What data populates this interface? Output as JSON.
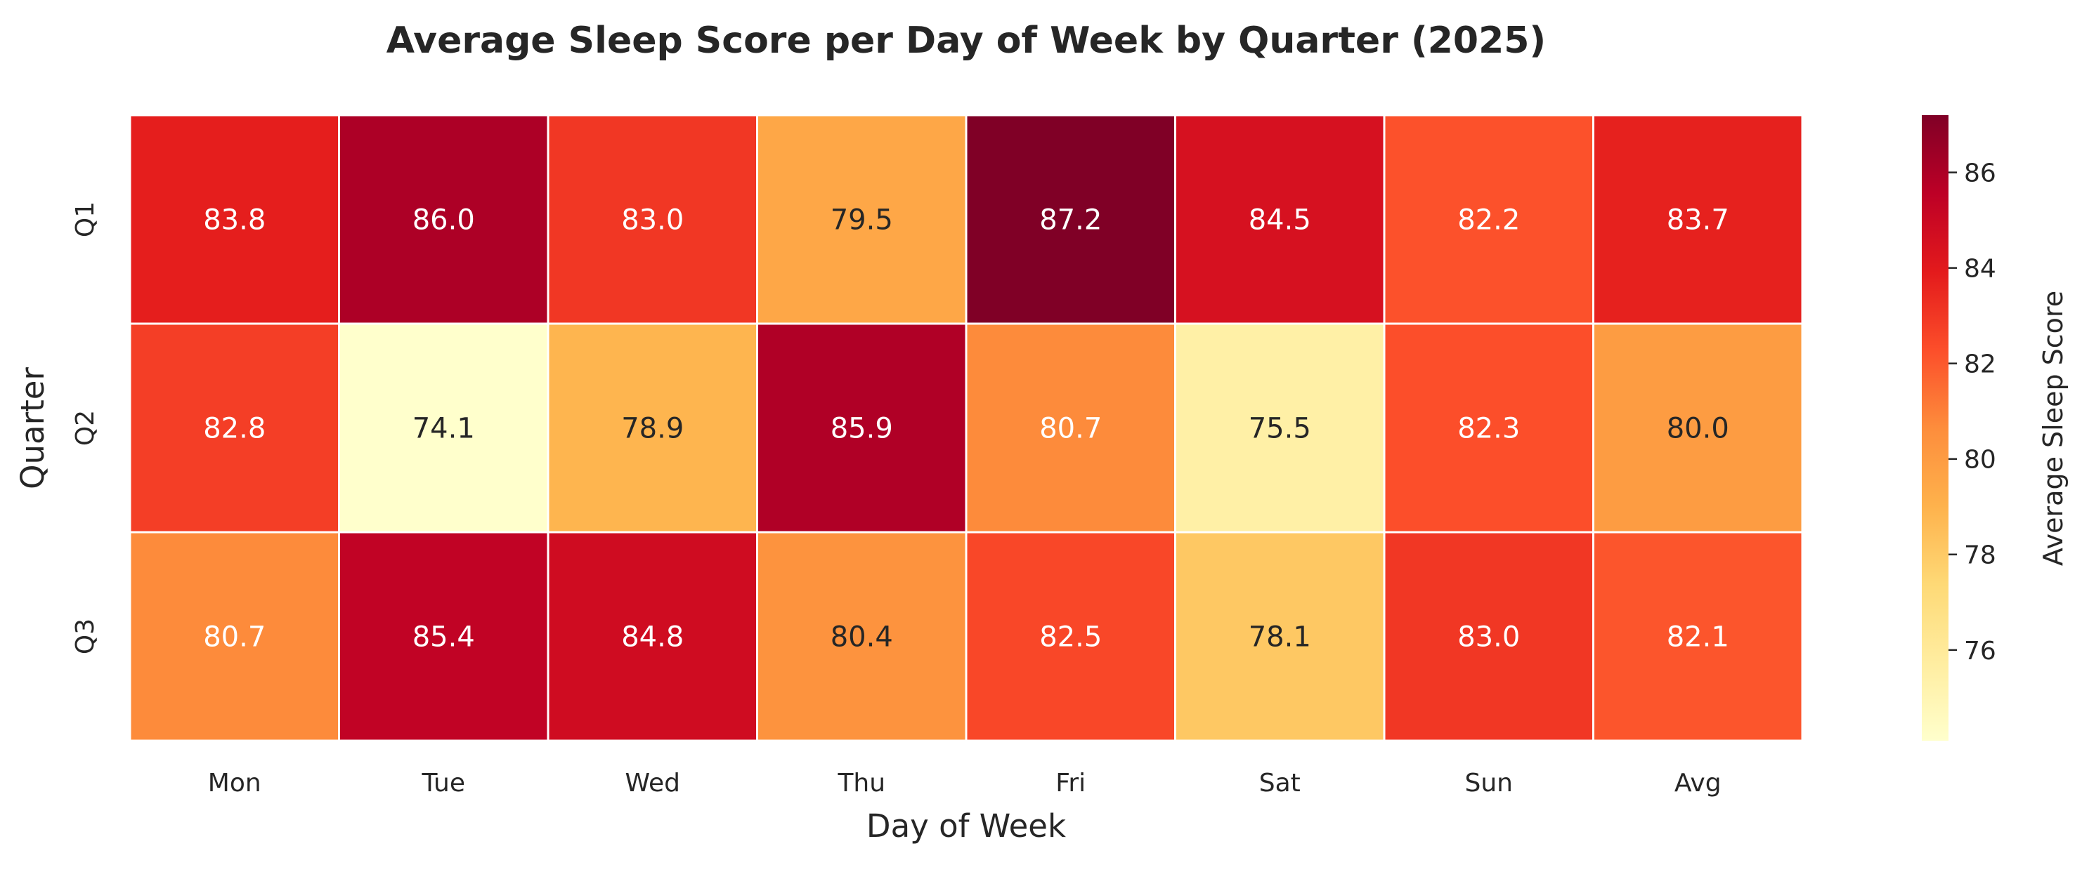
{
  "chart_data": {
    "type": "heatmap",
    "title": "Average Sleep Score per Day of Week by Quarter (2025)",
    "xlabel": "Day of Week",
    "ylabel": "Quarter",
    "x_categories": [
      "Mon",
      "Tue",
      "Wed",
      "Thu",
      "Fri",
      "Sat",
      "Sun",
      "Avg"
    ],
    "y_categories": [
      "Q1",
      "Q2",
      "Q3"
    ],
    "values": [
      [
        83.8,
        86.0,
        83.0,
        79.5,
        87.2,
        84.5,
        82.2,
        83.7
      ],
      [
        82.8,
        74.1,
        78.9,
        85.9,
        80.7,
        75.5,
        82.3,
        80.0
      ],
      [
        80.7,
        85.4,
        84.8,
        80.4,
        82.5,
        78.1,
        83.0,
        82.1
      ]
    ],
    "annotation_format": "0.1f",
    "colormap": "YlOrRd",
    "colormap_stops": [
      "#ffffcc",
      "#ffeda0",
      "#fed976",
      "#feb24c",
      "#fd8d3c",
      "#fc4e2a",
      "#e31a1c",
      "#bd0026",
      "#800026"
    ],
    "color_range": [
      74.1,
      87.2
    ],
    "colorbar": {
      "label": "Average Sleep Score",
      "ticks": [
        76,
        78,
        80,
        82,
        84,
        86
      ],
      "placement": "right"
    },
    "grid": false,
    "cell_border_color": "#ffffff"
  }
}
